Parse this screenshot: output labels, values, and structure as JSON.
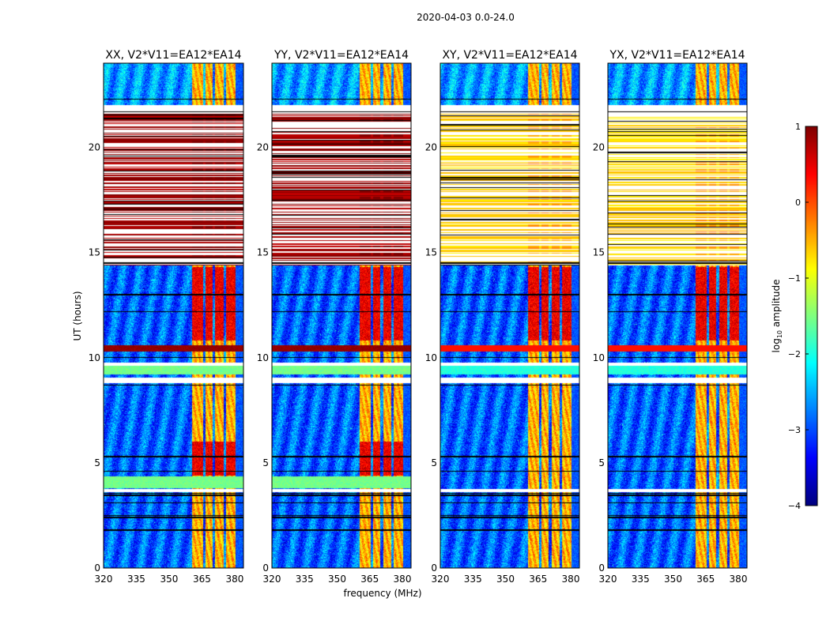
{
  "chart_data": {
    "type": "heatmap",
    "suptitle": "2020-04-03 0.0-24.0",
    "xlabel": "frequency (MHz)",
    "ylabel": "UT (hours)",
    "xlim": [
      320,
      384
    ],
    "ylim": [
      0,
      24
    ],
    "xticks": [
      "320",
      "335",
      "350",
      "365",
      "380"
    ],
    "yticks": [
      "0",
      "5",
      "10",
      "15",
      "20"
    ],
    "xtick_values": [
      320,
      335,
      350,
      365,
      380
    ],
    "ytick_values": [
      0,
      5,
      10,
      15,
      20
    ],
    "colorbar": {
      "label": "log10 amplitude",
      "label_main": "log",
      "label_sub": "10",
      "label_rest": " amplitude",
      "range": [
        -4,
        1
      ],
      "ticks": [
        "1",
        "0",
        "−1",
        "−2",
        "−3",
        "−4"
      ],
      "tick_values": [
        1,
        0,
        -1,
        -2,
        -3,
        -4
      ],
      "colormap": "jet"
    },
    "panels": [
      {
        "title": "XX, V2*V11=EA12*EA14",
        "pol": "XX",
        "stripe_value": 0.6
      },
      {
        "title": "YY, V2*V11=EA12*EA14",
        "pol": "YY",
        "stripe_value": 0.6
      },
      {
        "title": "XY, V2*V11=EA12*EA14",
        "pol": "XY",
        "stripe_value": -0.9
      },
      {
        "title": "YX, V2*V11=EA12*EA14",
        "pol": "YX",
        "stripe_value": -0.9
      }
    ],
    "features": {
      "background_log_amp": -2.9,
      "rfi_band_mhz": [
        360.5,
        380.5
      ],
      "rfi_gaps_mhz": [
        366,
        370.5,
        375.5
      ],
      "strong_rfi_hours": [
        10.8,
        14.3
      ],
      "bright_row_hours": [
        10.3,
        10.6
      ],
      "striped_region_hours": [
        14.4,
        21.6
      ],
      "flagged_hours": [
        [
          8.8,
          9.05
        ],
        [
          21.6,
          22.0
        ],
        [
          3.6,
          3.75
        ],
        [
          9.6,
          9.75
        ]
      ],
      "black_line_hours": [
        1.8,
        2.4,
        2.5,
        3.1,
        3.45,
        3.55,
        4.6,
        5.3,
        8.7,
        10.0,
        12.2,
        13.0,
        14.5,
        21.7,
        22.3
      ]
    }
  }
}
